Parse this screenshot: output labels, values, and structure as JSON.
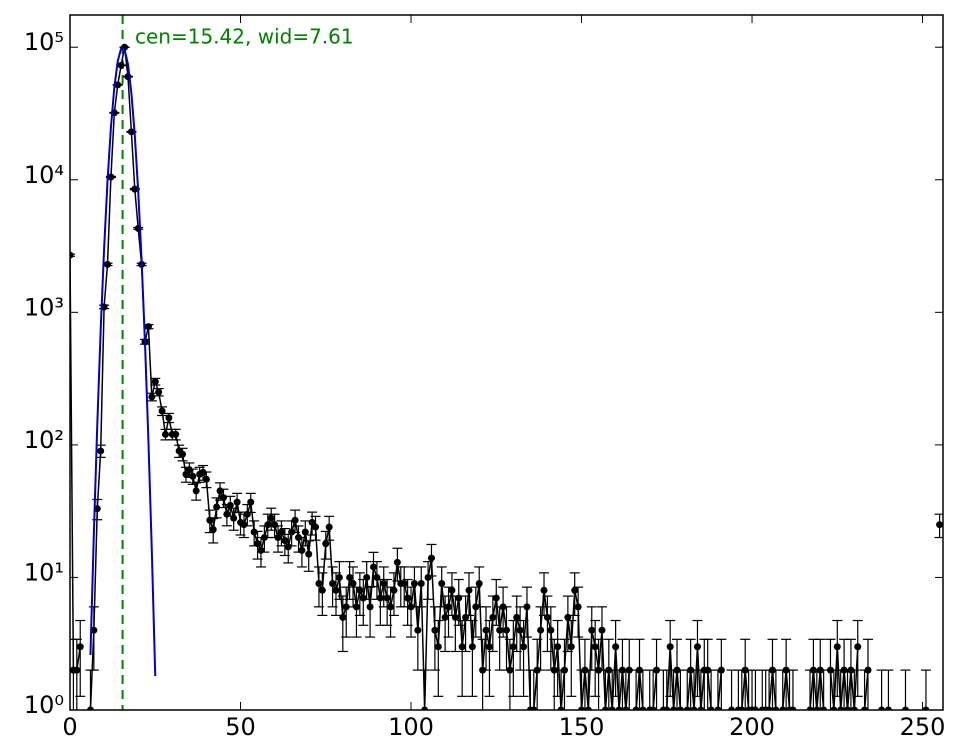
{
  "chart_data": {
    "type": "errorbar",
    "log_y": true,
    "annotation": "cen=15.42, wid=7.61",
    "vline": 15.42,
    "vline_color": "#008000",
    "xlim": [
      0,
      256
    ],
    "ylim": [
      1,
      175000
    ],
    "xticks": [
      0,
      50,
      100,
      150,
      200,
      250
    ],
    "yticks": [
      {
        "value": 1,
        "label": "10⁰"
      },
      {
        "value": 10,
        "label": "10¹"
      },
      {
        "value": 100,
        "label": "10²"
      },
      {
        "value": 1000,
        "label": "10³"
      },
      {
        "value": 10000,
        "label": "10⁴"
      },
      {
        "value": 100000,
        "label": "10⁵"
      }
    ],
    "series": [
      {
        "color": "#000000",
        "x": [
          0,
          1,
          2,
          3,
          4,
          5,
          6,
          7,
          8,
          9,
          10,
          11,
          12,
          13,
          14,
          15,
          16,
          17,
          18,
          19,
          20,
          21,
          22,
          23,
          24,
          25,
          26,
          27,
          28,
          29,
          30,
          31,
          32,
          33,
          34,
          35,
          36,
          37,
          38,
          39,
          40,
          41,
          42,
          43,
          44,
          45,
          46,
          47,
          48,
          49,
          50,
          51,
          52,
          53,
          54,
          55,
          56,
          57,
          58,
          59,
          60,
          61,
          62,
          63,
          64,
          65,
          66,
          67,
          68,
          69,
          70,
          71,
          72,
          73,
          74,
          75,
          76,
          77,
          78,
          79,
          80,
          81,
          82,
          83,
          84,
          85,
          86,
          87,
          88,
          89,
          90,
          91,
          92,
          93,
          94,
          95,
          96,
          97,
          98,
          99,
          100,
          101,
          102,
          103,
          104,
          105,
          106,
          107,
          108,
          109,
          110,
          111,
          112,
          113,
          114,
          115,
          116,
          117,
          118,
          119,
          120,
          121,
          122,
          123,
          124,
          125,
          126,
          127,
          128,
          129,
          130,
          131,
          132,
          133,
          134,
          135,
          136,
          137,
          138,
          139,
          140,
          141,
          142,
          143,
          144,
          145,
          146,
          147,
          148,
          149,
          150,
          151,
          152,
          153,
          154,
          155,
          156,
          157,
          158,
          159,
          160,
          161,
          162,
          163,
          164,
          165,
          166,
          167,
          168,
          169,
          170,
          171,
          172,
          173,
          174,
          175,
          176,
          177,
          178,
          179,
          180,
          181,
          182,
          183,
          184,
          185,
          186,
          187,
          188,
          189,
          190,
          191,
          192,
          193,
          194,
          195,
          196,
          197,
          198,
          199,
          200,
          201,
          202,
          203,
          204,
          205,
          206,
          207,
          208,
          209,
          210,
          211,
          212,
          213,
          214,
          215,
          216,
          217,
          218,
          219,
          220,
          221,
          222,
          223,
          224,
          225,
          226,
          227,
          228,
          229,
          230,
          231,
          232,
          233,
          234,
          235,
          236,
          237,
          238,
          239,
          240,
          241,
          242,
          243,
          244,
          245,
          246,
          247,
          248,
          249,
          250,
          251,
          252,
          253,
          254,
          255
        ],
        "values": [
          2700,
          2,
          2,
          3,
          null,
          null,
          1,
          4,
          33,
          90,
          1100,
          2300,
          10500,
          32000,
          52000,
          73000,
          100000,
          60000,
          23000,
          8500,
          4300,
          2300,
          600,
          780,
          230,
          300,
          250,
          180,
          120,
          160,
          120,
          120,
          90,
          85,
          60,
          65,
          58,
          45,
          60,
          62,
          55,
          27,
          23,
          34,
          45,
          40,
          30,
          35,
          28,
          37,
          26,
          25,
          30,
          37,
          22,
          18,
          16,
          20,
          25,
          28,
          25,
          20,
          22,
          19,
          17,
          22,
          27,
          20,
          16,
          22,
          15,
          26,
          24,
          9,
          8,
          18,
          24,
          9,
          8,
          10,
          5,
          6,
          10,
          9,
          6,
          8,
          7,
          10,
          6,
          12,
          10,
          7,
          9,
          7,
          6,
          8,
          13,
          9,
          9,
          7,
          6,
          9,
          4,
          9,
          1,
          10,
          14,
          4,
          3,
          9,
          5,
          6,
          8,
          5,
          7,
          3,
          5,
          8,
          3,
          6,
          9,
          2,
          4,
          3,
          5,
          7,
          4,
          6,
          4,
          2,
          3,
          5,
          4,
          3,
          6,
          1,
          1,
          2,
          4,
          8,
          5,
          4,
          2,
          3,
          1,
          2,
          5,
          3,
          8,
          6,
          1,
          2,
          1,
          4,
          3,
          2,
          4,
          1,
          2,
          1,
          3,
          1,
          2,
          1,
          2,
          null,
          1,
          2,
          1,
          null,
          1,
          1,
          2,
          null,
          1,
          1,
          3,
          1,
          2,
          1,
          null,
          1,
          2,
          1,
          3,
          1,
          2,
          2,
          1,
          null,
          1,
          2,
          null,
          null,
          1,
          null,
          1,
          1,
          2,
          1,
          1,
          1,
          null,
          1,
          1,
          1,
          2,
          1,
          null,
          1,
          2,
          1,
          1,
          null,
          null,
          null,
          null,
          1,
          2,
          1,
          2,
          1,
          null,
          2,
          1,
          3,
          1,
          2,
          1,
          2,
          1,
          3,
          null,
          1,
          2,
          null,
          null,
          null,
          1,
          null,
          1,
          null,
          null,
          null,
          null,
          1,
          null,
          null,
          null,
          null,
          null,
          1,
          null,
          null,
          null,
          25
        ]
      },
      {
        "color": "#0000cc",
        "x": [
          6,
          7,
          8,
          9,
          10,
          11,
          12,
          13,
          14,
          15,
          16,
          17,
          18,
          19,
          20,
          21,
          22,
          23,
          24,
          25
        ],
        "values": [
          2.6,
          21.6,
          142,
          740,
          3020,
          9760,
          24800,
          49800,
          78700,
          97900,
          96100,
          74300,
          45200,
          21700,
          8200,
          2460,
          580,
          107,
          15.7,
          1.8
        ]
      }
    ]
  }
}
